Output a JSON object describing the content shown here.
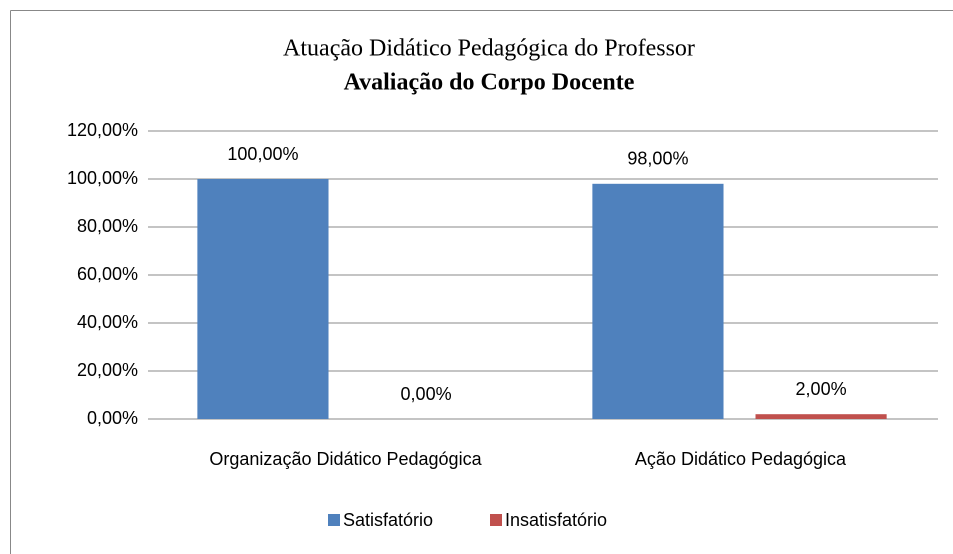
{
  "chart_data": {
    "type": "bar",
    "title": "Atuação Didático Pedagógica do Professor",
    "subtitle": "Avaliação do Corpo Docente",
    "categories": [
      "Organização Didático Pedagógica",
      "Ação Didático Pedagógica"
    ],
    "series": [
      {
        "name": "Satisfatório",
        "color": "#4f81bd",
        "values": [
          100,
          98
        ],
        "value_labels": [
          "100,00%",
          "98,00%"
        ]
      },
      {
        "name": "Insatisfatório",
        "color": "#c0504d",
        "values": [
          0,
          2
        ],
        "value_labels": [
          "0,00%",
          "2,00%"
        ]
      }
    ],
    "ylim": [
      0,
      120
    ],
    "yticks": [
      {
        "value": 0,
        "label": "0,00%"
      },
      {
        "value": 20,
        "label": "20,00%"
      },
      {
        "value": 40,
        "label": "40,00%"
      },
      {
        "value": 60,
        "label": "60,00%"
      },
      {
        "value": 80,
        "label": "80,00%"
      },
      {
        "value": 100,
        "label": "100,00%"
      },
      {
        "value": 120,
        "label": "120,00%"
      }
    ],
    "grid": true,
    "legend": "bottom"
  }
}
